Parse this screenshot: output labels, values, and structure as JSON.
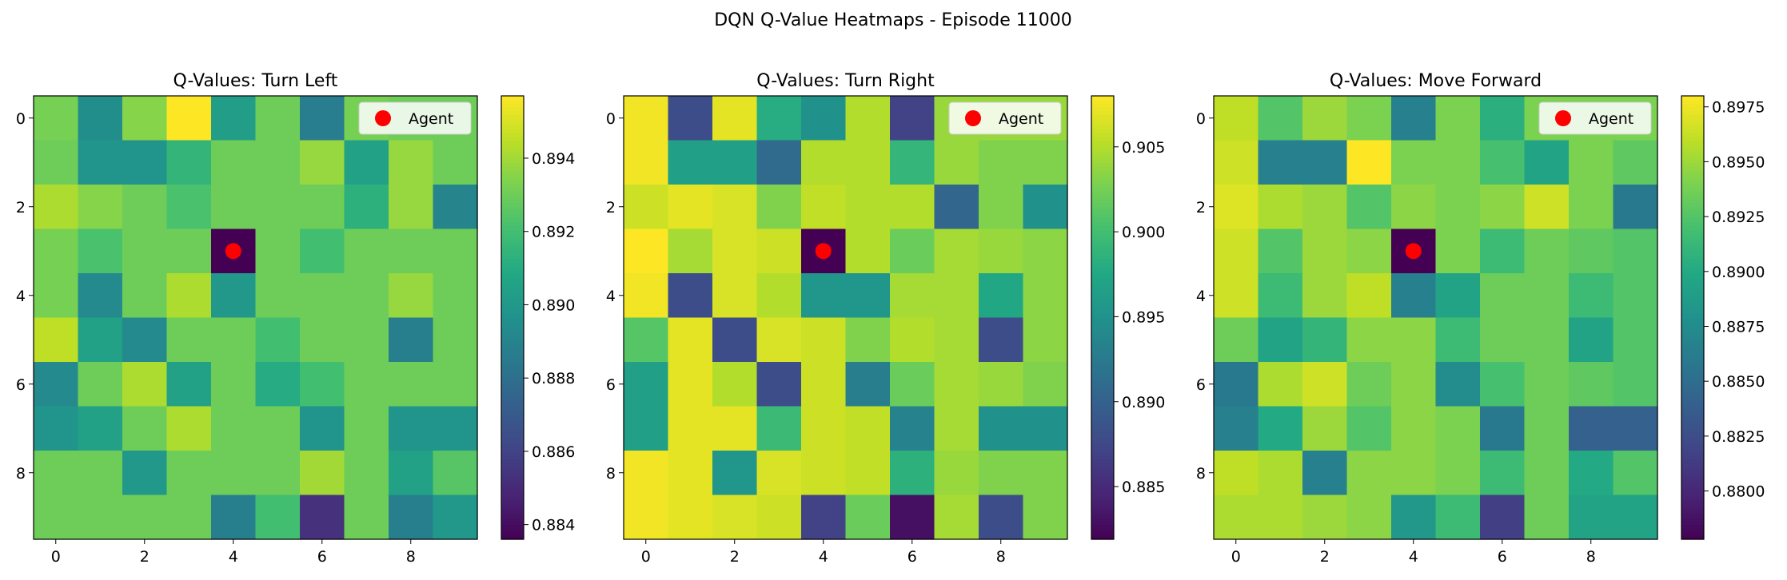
{
  "chart_data": {
    "suptitle": "DQN Q-Value Heatmaps - Episode 11000",
    "type": "heatmap",
    "colormap": "viridis",
    "panels": [
      {
        "title": "Q-Values: Turn Left",
        "vmin": 0.8836,
        "vmax": 0.8957,
        "colorbar_ticks": [
          "0.884",
          "0.886",
          "0.888",
          "0.890",
          "0.892",
          "0.894"
        ],
        "colorbar_tick_values": [
          0.884,
          0.886,
          0.888,
          0.89,
          0.892,
          0.894
        ],
        "values": [
          [
            0.8932,
            0.8895,
            0.8935,
            0.8957,
            0.8903,
            0.893,
            0.8887,
            0.8932,
            0.893,
            0.893
          ],
          [
            0.893,
            0.8898,
            0.8898,
            0.8915,
            0.893,
            0.893,
            0.8938,
            0.8905,
            0.8938,
            0.893
          ],
          [
            0.8942,
            0.8935,
            0.893,
            0.8922,
            0.893,
            0.893,
            0.893,
            0.8913,
            0.8938,
            0.889
          ],
          [
            0.8932,
            0.8922,
            0.893,
            0.893,
            0.8836,
            0.893,
            0.892,
            0.893,
            0.893,
            0.893
          ],
          [
            0.8932,
            0.8893,
            0.893,
            0.8942,
            0.89,
            0.893,
            0.893,
            0.893,
            0.8938,
            0.893
          ],
          [
            0.8945,
            0.8905,
            0.8893,
            0.893,
            0.893,
            0.892,
            0.893,
            0.893,
            0.8888,
            0.893
          ],
          [
            0.8893,
            0.893,
            0.8942,
            0.8905,
            0.893,
            0.891,
            0.892,
            0.893,
            0.893,
            0.893
          ],
          [
            0.8898,
            0.8905,
            0.893,
            0.8942,
            0.893,
            0.893,
            0.8898,
            0.893,
            0.8898,
            0.8898
          ],
          [
            0.893,
            0.893,
            0.89,
            0.893,
            0.893,
            0.893,
            0.894,
            0.893,
            0.8905,
            0.8925
          ],
          [
            0.893,
            0.893,
            0.893,
            0.893,
            0.8888,
            0.892,
            0.8853,
            0.893,
            0.8888,
            0.89
          ]
        ]
      },
      {
        "title": "Q-Values: Turn Right",
        "vmin": 0.8819,
        "vmax": 0.908,
        "colorbar_ticks": [
          "0.885",
          "0.890",
          "0.895",
          "0.900",
          "0.905"
        ],
        "colorbar_tick_values": [
          0.885,
          0.89,
          0.895,
          0.9,
          0.905
        ],
        "values": [
          [
            0.9075,
            0.888,
            0.907,
            0.898,
            0.895,
            0.905,
            0.887,
            0.904,
            0.904,
            0.904
          ],
          [
            0.9075,
            0.8965,
            0.8965,
            0.891,
            0.905,
            0.905,
            0.899,
            0.904,
            0.903,
            0.903
          ],
          [
            0.906,
            0.907,
            0.9065,
            0.903,
            0.9055,
            0.905,
            0.905,
            0.8905,
            0.903,
            0.895
          ],
          [
            0.908,
            0.9045,
            0.9065,
            0.906,
            0.8819,
            0.905,
            0.902,
            0.9045,
            0.904,
            0.9035
          ],
          [
            0.9075,
            0.888,
            0.9065,
            0.905,
            0.8955,
            0.8955,
            0.9045,
            0.9045,
            0.8975,
            0.9035
          ],
          [
            0.901,
            0.907,
            0.888,
            0.9065,
            0.906,
            0.903,
            0.905,
            0.9045,
            0.888,
            0.9035
          ],
          [
            0.8965,
            0.907,
            0.905,
            0.888,
            0.906,
            0.893,
            0.902,
            0.9045,
            0.904,
            0.903
          ],
          [
            0.8965,
            0.907,
            0.907,
            0.8995,
            0.906,
            0.9055,
            0.8935,
            0.9045,
            0.895,
            0.895
          ],
          [
            0.9075,
            0.907,
            0.8955,
            0.9065,
            0.906,
            0.9055,
            0.8985,
            0.904,
            0.903,
            0.903
          ],
          [
            0.9075,
            0.907,
            0.9065,
            0.906,
            0.887,
            0.902,
            0.883,
            0.9045,
            0.888,
            0.903
          ]
        ]
      },
      {
        "title": "Q-Values: Move Forward",
        "vmin": 0.8778,
        "vmax": 0.898,
        "colorbar_ticks": [
          "0.8800",
          "0.8825",
          "0.8850",
          "0.8875",
          "0.8900",
          "0.8925",
          "0.8950",
          "0.8975"
        ],
        "colorbar_tick_values": [
          0.88,
          0.8825,
          0.885,
          0.8875,
          0.89,
          0.8925,
          0.895,
          0.8975
        ],
        "values": [
          [
            0.896,
            0.8925,
            0.895,
            0.894,
            0.8865,
            0.894,
            0.8905,
            0.894,
            0.894,
            0.894
          ],
          [
            0.8965,
            0.8865,
            0.8865,
            0.898,
            0.894,
            0.894,
            0.892,
            0.8895,
            0.894,
            0.893
          ],
          [
            0.897,
            0.8955,
            0.895,
            0.8925,
            0.8945,
            0.894,
            0.8945,
            0.8965,
            0.894,
            0.886
          ],
          [
            0.8965,
            0.8925,
            0.895,
            0.8945,
            0.8778,
            0.894,
            0.8915,
            0.8935,
            0.893,
            0.8925
          ],
          [
            0.8965,
            0.8915,
            0.895,
            0.896,
            0.8865,
            0.8895,
            0.8935,
            0.8935,
            0.8915,
            0.8925
          ],
          [
            0.8935,
            0.8895,
            0.891,
            0.8945,
            0.8945,
            0.8915,
            0.8935,
            0.8935,
            0.8895,
            0.8925
          ],
          [
            0.886,
            0.8955,
            0.8965,
            0.8935,
            0.8945,
            0.8875,
            0.892,
            0.8935,
            0.893,
            0.8925
          ],
          [
            0.8865,
            0.89,
            0.895,
            0.8925,
            0.8945,
            0.894,
            0.886,
            0.8935,
            0.884,
            0.884
          ],
          [
            0.896,
            0.8955,
            0.8865,
            0.8945,
            0.8945,
            0.894,
            0.8915,
            0.8935,
            0.89,
            0.8925
          ],
          [
            0.8955,
            0.8955,
            0.895,
            0.8945,
            0.8885,
            0.8915,
            0.8815,
            0.8935,
            0.8895,
            0.8895
          ]
        ]
      }
    ],
    "x_ticks": [
      "0",
      "2",
      "4",
      "6",
      "8"
    ],
    "x_tick_values": [
      0,
      2,
      4,
      6,
      8
    ],
    "y_ticks": [
      "0",
      "2",
      "4",
      "6",
      "8"
    ],
    "y_tick_values": [
      0,
      2,
      4,
      6,
      8
    ],
    "agent": {
      "row": 3,
      "col": 4,
      "color": "#ff0000"
    },
    "legend": {
      "label": "Agent",
      "placement": "upper right"
    }
  }
}
